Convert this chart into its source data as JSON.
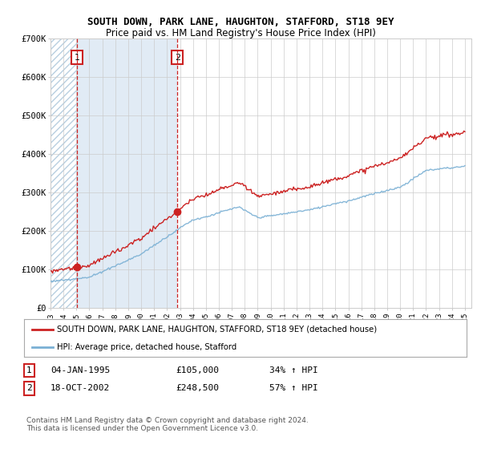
{
  "title": "SOUTH DOWN, PARK LANE, HAUGHTON, STAFFORD, ST18 9EY",
  "subtitle": "Price paid vs. HM Land Registry's House Price Index (HPI)",
  "ylim": [
    0,
    700000
  ],
  "yticks": [
    0,
    100000,
    200000,
    300000,
    400000,
    500000,
    600000,
    700000
  ],
  "ytick_labels": [
    "£0",
    "£100K",
    "£200K",
    "£300K",
    "£400K",
    "£500K",
    "£600K",
    "£700K"
  ],
  "sale1_date_num": 1995.04,
  "sale1_price": 105000,
  "sale2_date_num": 2002.8,
  "sale2_price": 248500,
  "legend_line1": "SOUTH DOWN, PARK LANE, HAUGHTON, STAFFORD, ST18 9EY (detached house)",
  "legend_line2": "HPI: Average price, detached house, Stafford",
  "footer": "Contains HM Land Registry data © Crown copyright and database right 2024.\nThis data is licensed under the Open Government Licence v3.0.",
  "red_line_color": "#cc2222",
  "blue_line_color": "#7ab0d4",
  "hatch_bg_color": "#dce8f4",
  "hatch_edge_color": "#b8cfe0",
  "between_fill_color": "#dce8f4",
  "grid_color": "#cccccc",
  "vline_color": "#cc2222",
  "marker_color": "#cc2222",
  "title_fontsize": 9,
  "subtitle_fontsize": 8.5
}
